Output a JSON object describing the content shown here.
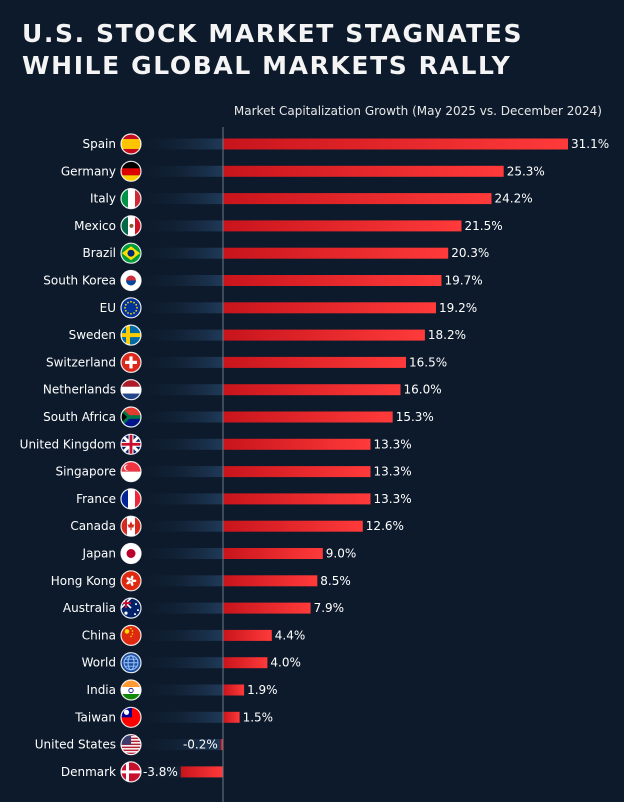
{
  "title_line1": "U.S. Stock Market Stagnates",
  "title_line2": "While Global Markets Rally",
  "chart_data": {
    "type": "bar",
    "orientation": "horizontal",
    "subtitle": "Market Capitalization Growth (May 2025 vs. December 2024)",
    "unit": "%",
    "categories": [
      "Spain",
      "Germany",
      "Italy",
      "Mexico",
      "Brazil",
      "South Korea",
      "EU",
      "Sweden",
      "Switzerland",
      "Netherlands",
      "South Africa",
      "United Kingdom",
      "Singapore",
      "France",
      "Canada",
      "Japan",
      "Hong Kong",
      "Australia",
      "China",
      "World",
      "India",
      "Taiwan",
      "United States",
      "Denmark"
    ],
    "values": [
      31.1,
      25.3,
      24.2,
      21.5,
      20.3,
      19.7,
      19.2,
      18.2,
      16.5,
      16.0,
      15.3,
      13.3,
      13.3,
      13.3,
      12.6,
      9.0,
      8.5,
      7.9,
      4.4,
      4.0,
      1.9,
      1.5,
      -0.2,
      -3.8
    ],
    "value_labels": [
      "31.1%",
      "25.3%",
      "24.2%",
      "21.5%",
      "20.3%",
      "19.7%",
      "19.2%",
      "18.2%",
      "16.5%",
      "16.0%",
      "15.3%",
      "13.3%",
      "13.3%",
      "13.3%",
      "12.6%",
      "9.0%",
      "8.5%",
      "7.9%",
      "4.4%",
      "4.0%",
      "1.9%",
      "1.5%",
      "-0.2%",
      "-3.8%"
    ],
    "flag_icons": [
      "flag-spain-icon",
      "flag-germany-icon",
      "flag-italy-icon",
      "flag-mexico-icon",
      "flag-brazil-icon",
      "flag-south-korea-icon",
      "flag-eu-icon",
      "flag-sweden-icon",
      "flag-switzerland-icon",
      "flag-netherlands-icon",
      "flag-south-africa-icon",
      "flag-united-kingdom-icon",
      "flag-singapore-icon",
      "flag-france-icon",
      "flag-canada-icon",
      "flag-japan-icon",
      "flag-hong-kong-icon",
      "flag-australia-icon",
      "flag-china-icon",
      "globe-icon",
      "flag-india-icon",
      "flag-taiwan-icon",
      "flag-united-states-icon",
      "flag-denmark-icon"
    ],
    "xlim": [
      -3.8,
      31.1
    ],
    "bar_color": "#e8242a",
    "track_color": "#1c3550",
    "background_color": "#0d1a2b",
    "grid": false
  }
}
